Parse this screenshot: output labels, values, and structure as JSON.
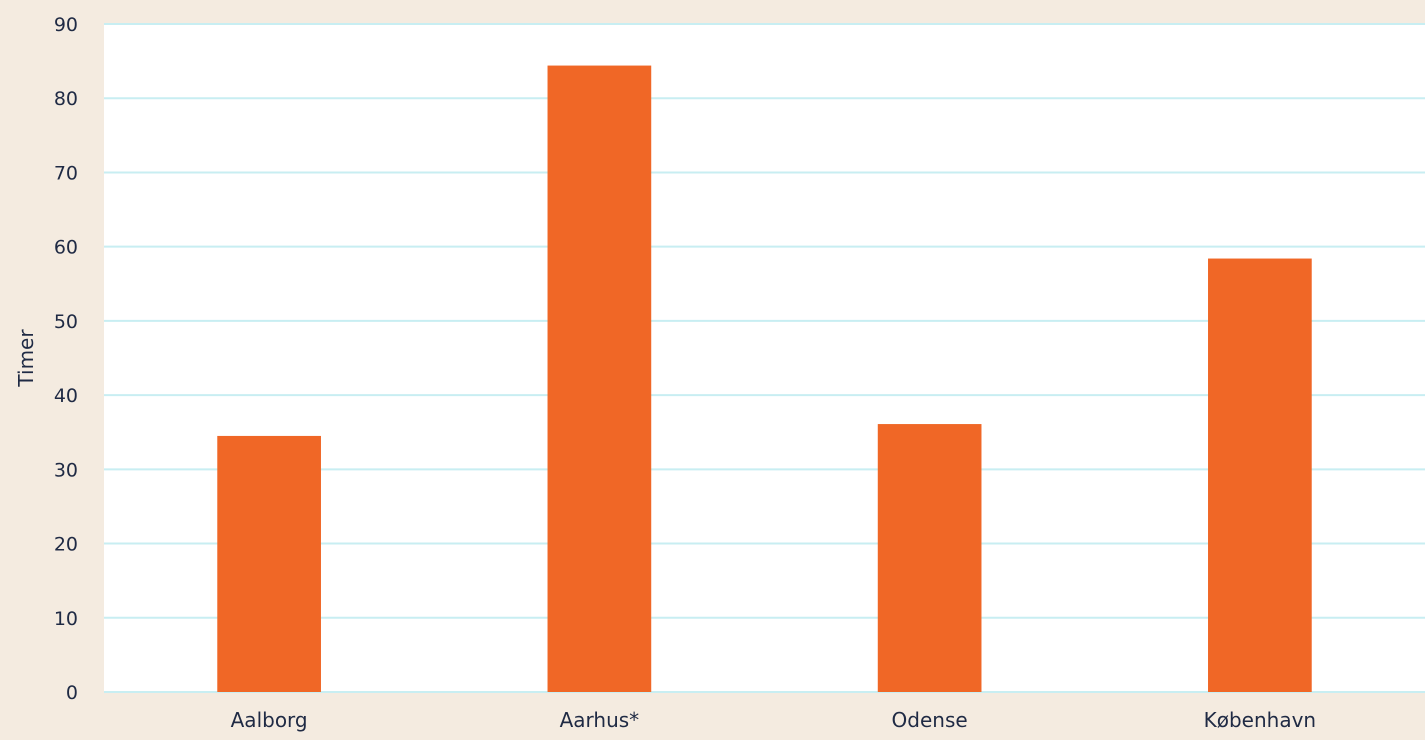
{
  "colors": {
    "page_background": "#f4ebe0",
    "plot_background": "#ffffff",
    "gridline": "#c8eef2",
    "bar": "#f06726",
    "text": "#1f2a44"
  },
  "chart_data": {
    "type": "bar",
    "title": "",
    "xlabel": "",
    "ylabel": "Timer",
    "categories": [
      "Aalborg",
      "Aarhus*",
      "Odense",
      "København"
    ],
    "values": [
      34.5,
      84.4,
      36.1,
      58.4
    ],
    "ylim": [
      0,
      90
    ],
    "yticks": [
      "0",
      "10",
      "20",
      "30",
      "40",
      "50",
      "60",
      "70",
      "80",
      "90"
    ],
    "grid": true,
    "legend": "none"
  }
}
